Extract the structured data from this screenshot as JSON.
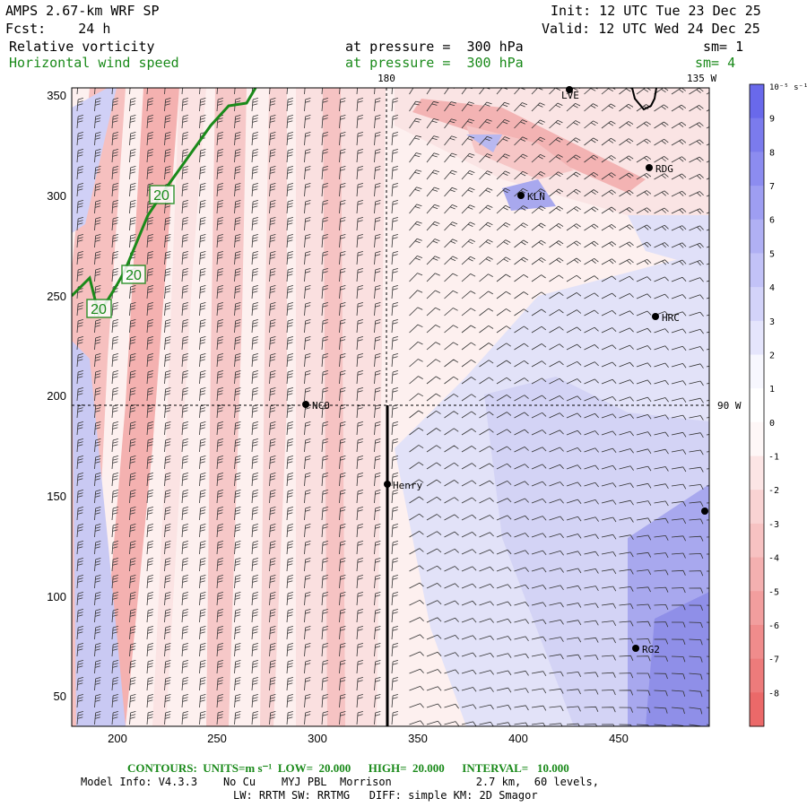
{
  "header": {
    "model": "AMPS 2.67-km WRF SP",
    "init": "Init: 12 UTC Tue 23 Dec 25",
    "fcst": "Fcst:    24 h",
    "valid": "Valid: 12 UTC Wed 24 Dec 25",
    "field1": "Relative vorticity",
    "field1_level": "at pressure =  300 hPa",
    "field1_sm": "sm= 1",
    "field2": "Horizontal wind speed",
    "field2_level": "at pressure =  300 hPa",
    "field2_sm": "sm= 4"
  },
  "map": {
    "x_ticks": [
      "200",
      "250",
      "300",
      "350",
      "400",
      "450"
    ],
    "y_ticks": [
      "350",
      "300",
      "250",
      "200",
      "150",
      "100",
      "50"
    ],
    "meridian_label": "180",
    "lon_label_top": "135 W",
    "lon_label_right": "90 W",
    "stations": [
      {
        "name": "LVE"
      },
      {
        "name": "RDG"
      },
      {
        "name": "KLN"
      },
      {
        "name": "HRC"
      },
      {
        "name": "NCO"
      },
      {
        "name": "Henry"
      },
      {
        "name": "RG2"
      }
    ],
    "contour_labels": [
      "20",
      "20",
      "20"
    ],
    "contour_color": "#1a8a1a",
    "positive_color": "#6a6aee",
    "negative_color": "#ee6a6a"
  },
  "colorbar": {
    "unit_label": "10⁻⁵ s⁻¹",
    "labels": [
      "9",
      "8",
      "7",
      "6",
      "5",
      "4",
      "3",
      "2",
      "1",
      "0",
      "-1",
      "-2",
      "-3",
      "-4",
      "-5",
      "-6",
      "-7",
      "-8"
    ]
  },
  "footer": {
    "contours": "CONTOURS:  UNITS=m s⁻¹  LOW=  20.000      HIGH=  20.000      INTERVAL=   10.000",
    "model_info": "Model Info: V4.3.3    No Cu    MYJ PBL  Morrison             2.7 km,  60 levels,",
    "physics": "LW: RRTM SW: RRTMG   DIFF: simple KM: 2D Smagor"
  }
}
